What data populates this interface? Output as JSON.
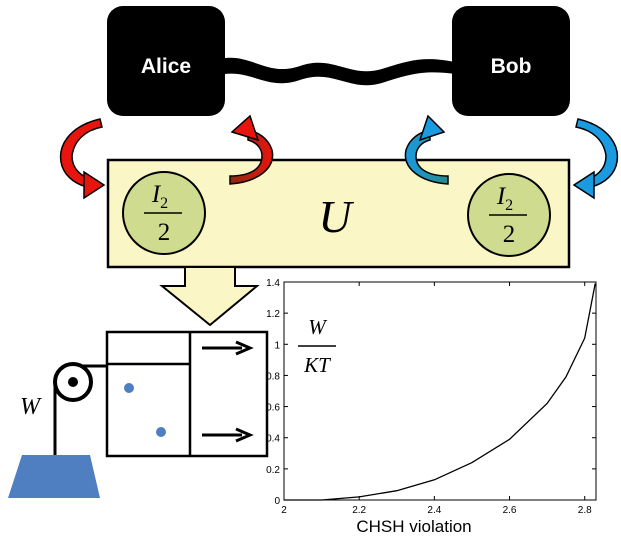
{
  "parties": {
    "alice": "Alice",
    "bob": "Bob"
  },
  "unitary_label": "U",
  "state": {
    "numerator_base": "I",
    "numerator_subscript": "2",
    "denominator": "2"
  },
  "work_label": "W",
  "colors": {
    "party_box": "#000000",
    "alice_arrows": "#e8150f",
    "bob_arrows": "#1a9ae0",
    "unitary_box": "#fbf6c5",
    "state_circle": "#cfdc8f",
    "weight": "#4f7fc0",
    "particles": "#4f7fc0"
  },
  "chart_data": {
    "type": "line",
    "x": [
      2.0,
      2.1,
      2.2,
      2.3,
      2.4,
      2.5,
      2.6,
      2.7,
      2.75,
      2.8,
      2.828
    ],
    "series": [
      {
        "values": [
          0.0,
          0.0,
          0.02,
          0.06,
          0.13,
          0.24,
          0.39,
          0.62,
          0.79,
          1.04,
          1.39
        ]
      }
    ],
    "xlabel": "CHSH violation",
    "ylabel_num": "W",
    "ylabel_den": "KT",
    "xlim": [
      2.0,
      2.83
    ],
    "ylim": [
      0,
      1.4
    ],
    "xticks": [
      "2",
      "2.2",
      "2.4",
      "2.6",
      "2.8"
    ],
    "yticks": [
      "0",
      "0.2",
      "0.4",
      "0.6",
      "0.8",
      "1",
      "1.2",
      "1.4"
    ],
    "grid": false
  }
}
